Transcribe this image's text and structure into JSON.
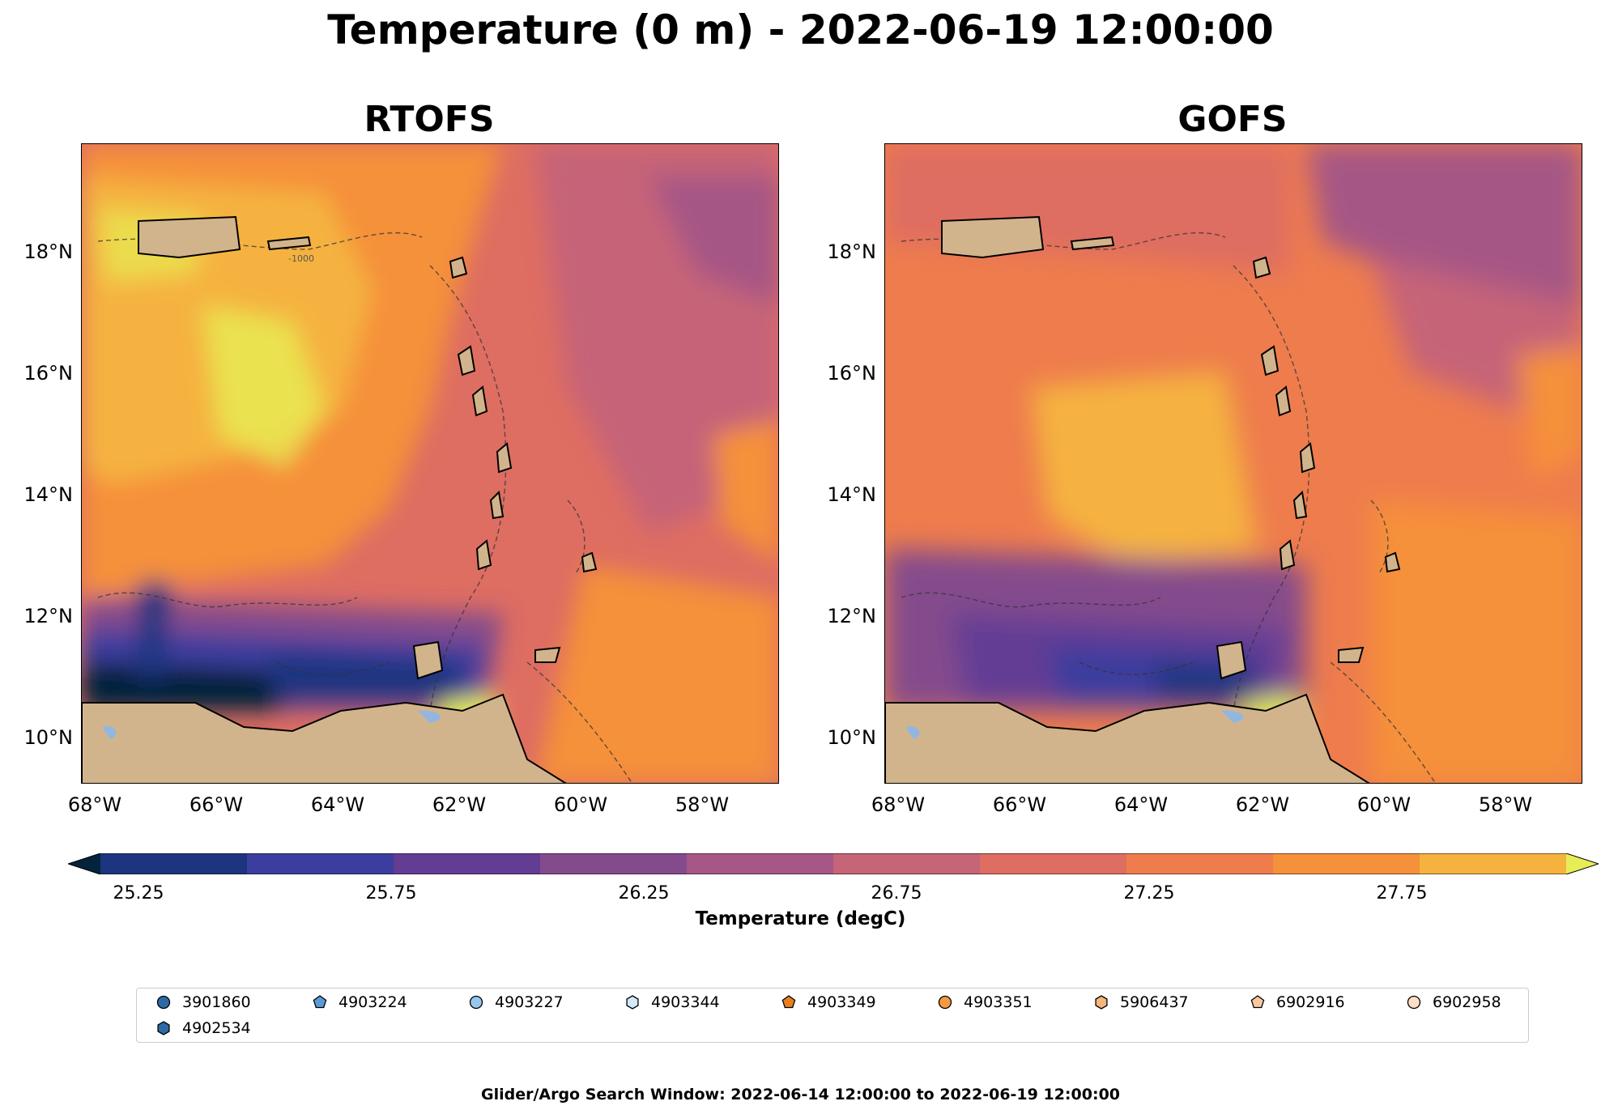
{
  "figure": {
    "title": "Temperature (0 m) - 2022-06-19 12:00:00",
    "footer": "Glider/Argo Search Window: 2022-06-14 12:00:00 to 2022-06-19 12:00:00"
  },
  "panels": [
    {
      "title": "RTOFS"
    },
    {
      "title": "GOFS"
    }
  ],
  "axes": {
    "y_labels": [
      "18°N",
      "16°N",
      "14°N",
      "12°N",
      "10°N"
    ],
    "x_labels": [
      "68°W",
      "66°W",
      "64°W",
      "62°W",
      "60°W",
      "58°W"
    ]
  },
  "contour_label": "-1000",
  "colorbar": {
    "label": "Temperature (degC)",
    "ticks": [
      "25.25",
      "25.75",
      "26.25",
      "26.75",
      "27.25",
      "27.75"
    ],
    "colors": [
      "#03233b",
      "#1d3480",
      "#3b3e9e",
      "#633c94",
      "#844b8c",
      "#a65785",
      "#c66478",
      "#de6d62",
      "#ee7c4d",
      "#f5903b",
      "#f5b23f",
      "#e7ee55"
    ]
  },
  "colors": {
    "land": "#d2b48c",
    "lake": "#92b6e0"
  },
  "legend": {
    "items": [
      {
        "label": "3901860",
        "marker": "circle",
        "color": "#2c6aa6"
      },
      {
        "label": "4903224",
        "marker": "pentagon",
        "color": "#5a9ad6"
      },
      {
        "label": "4903227",
        "marker": "circle",
        "color": "#98c6ec"
      },
      {
        "label": "4903344",
        "marker": "hexagon",
        "color": "#d3e8f8"
      },
      {
        "label": "4903349",
        "marker": "pentagon",
        "color": "#e8801f"
      },
      {
        "label": "4903351",
        "marker": "circle",
        "color": "#f39a42"
      },
      {
        "label": "5906437",
        "marker": "hexagon",
        "color": "#f7b57b"
      },
      {
        "label": "6902916",
        "marker": "pentagon",
        "color": "#f9c89e"
      },
      {
        "label": "6902958",
        "marker": "circle",
        "color": "#fde0c4"
      },
      {
        "label": "4902534",
        "marker": "hexagon",
        "color": "#2c6aa6"
      }
    ]
  }
}
